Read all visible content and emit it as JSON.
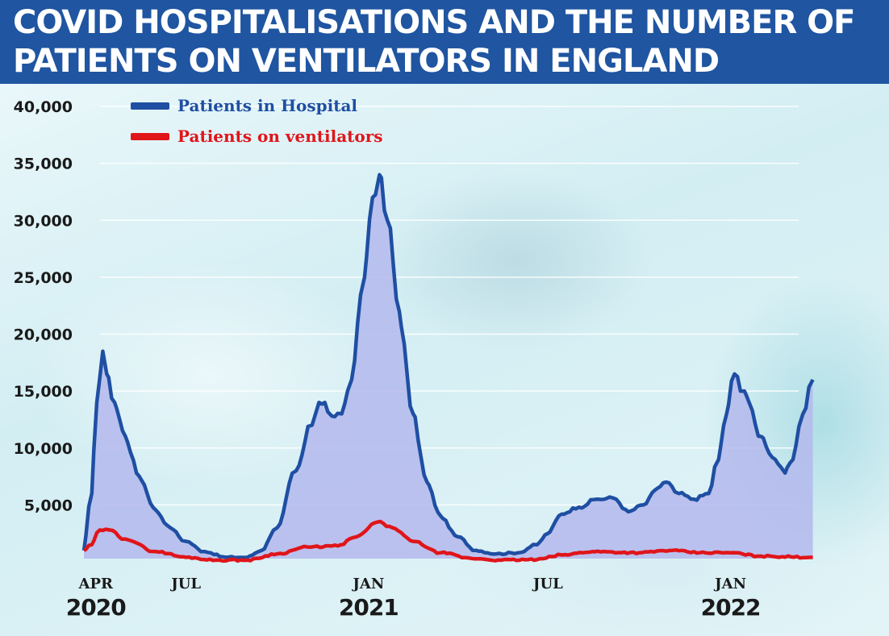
{
  "chart_data": {
    "type": "line",
    "title": "COVID HOSPITALISATIONS AND THE NUMBER OF PATIENTS ON VENTILATORS IN ENGLAND",
    "xlabel": "",
    "ylabel": "",
    "ylim": [
      0,
      40000
    ],
    "yticks": [
      {
        "value": 5000,
        "label": "5,000"
      },
      {
        "value": 10000,
        "label": "10,000"
      },
      {
        "value": 15000,
        "label": "15,000"
      },
      {
        "value": 20000,
        "label": "20,000"
      },
      {
        "value": 25000,
        "label": "25,000"
      },
      {
        "value": 30000,
        "label": "30,000"
      },
      {
        "value": 35000,
        "label": "35,000"
      },
      {
        "value": 40000,
        "label": "40,000"
      }
    ],
    "xlim": [
      "2020-03-20",
      "2022-03-31"
    ],
    "xticks": [
      {
        "date": "2020-04-01",
        "month": "APR",
        "year": "2020"
      },
      {
        "date": "2020-07-01",
        "month": "JUL",
        "year": ""
      },
      {
        "date": "2021-01-01",
        "month": "JAN",
        "year": "2021"
      },
      {
        "date": "2021-07-01",
        "month": "JUL",
        "year": ""
      },
      {
        "date": "2022-01-01",
        "month": "JAN",
        "year": "2022"
      }
    ],
    "grid": true,
    "legend_position": "top-left",
    "series": [
      {
        "name": "Patients in Hospital",
        "color": "#1f4fa3",
        "fill": "#b4b9ec",
        "points": [
          [
            "2020-03-20",
            1000
          ],
          [
            "2020-03-28",
            6000
          ],
          [
            "2020-04-02",
            14000
          ],
          [
            "2020-04-08",
            18500
          ],
          [
            "2020-04-12",
            16500
          ],
          [
            "2020-04-20",
            14000
          ],
          [
            "2020-05-01",
            11000
          ],
          [
            "2020-05-15",
            7500
          ],
          [
            "2020-06-01",
            4500
          ],
          [
            "2020-06-15",
            3000
          ],
          [
            "2020-07-01",
            1800
          ],
          [
            "2020-07-20",
            900
          ],
          [
            "2020-08-10",
            400
          ],
          [
            "2020-09-01",
            400
          ],
          [
            "2020-09-15",
            1000
          ],
          [
            "2020-10-01",
            3000
          ],
          [
            "2020-10-20",
            8000
          ],
          [
            "2020-11-05",
            12000
          ],
          [
            "2020-11-12",
            14000
          ],
          [
            "2020-11-18",
            14000
          ],
          [
            "2020-11-25",
            12800
          ],
          [
            "2020-12-05",
            13000
          ],
          [
            "2020-12-15",
            16000
          ],
          [
            "2020-12-28",
            25000
          ],
          [
            "2021-01-05",
            32000
          ],
          [
            "2021-01-12",
            34000
          ],
          [
            "2021-01-20",
            30000
          ],
          [
            "2021-02-01",
            22000
          ],
          [
            "2021-02-15",
            13000
          ],
          [
            "2021-03-01",
            7000
          ],
          [
            "2021-03-15",
            4000
          ],
          [
            "2021-04-01",
            2200
          ],
          [
            "2021-04-20",
            1000
          ],
          [
            "2021-05-10",
            700
          ],
          [
            "2021-06-01",
            800
          ],
          [
            "2021-06-20",
            1500
          ],
          [
            "2021-07-01",
            2500
          ],
          [
            "2021-07-15",
            4200
          ],
          [
            "2021-08-01",
            4800
          ],
          [
            "2021-08-20",
            5500
          ],
          [
            "2021-09-05",
            5600
          ],
          [
            "2021-09-20",
            4400
          ],
          [
            "2021-10-05",
            5000
          ],
          [
            "2021-10-20",
            6500
          ],
          [
            "2021-10-28",
            7000
          ],
          [
            "2021-11-10",
            6000
          ],
          [
            "2021-11-25",
            5500
          ],
          [
            "2021-12-10",
            6000
          ],
          [
            "2021-12-20",
            9000
          ],
          [
            "2021-12-28",
            13000
          ],
          [
            "2022-01-05",
            16500
          ],
          [
            "2022-01-15",
            15000
          ],
          [
            "2022-02-01",
            11000
          ],
          [
            "2022-02-15",
            9000
          ],
          [
            "2022-02-25",
            7800
          ],
          [
            "2022-03-05",
            9000
          ],
          [
            "2022-03-15",
            13000
          ],
          [
            "2022-03-25",
            16000
          ]
        ]
      },
      {
        "name": "Patients on ventilators",
        "color": "#e0151a",
        "points": [
          [
            "2020-03-20",
            1000
          ],
          [
            "2020-03-28",
            1500
          ],
          [
            "2020-04-05",
            2800
          ],
          [
            "2020-04-15",
            2800
          ],
          [
            "2020-05-01",
            2000
          ],
          [
            "2020-06-01",
            900
          ],
          [
            "2020-07-01",
            400
          ],
          [
            "2020-08-01",
            150
          ],
          [
            "2020-09-01",
            150
          ],
          [
            "2020-10-01",
            700
          ],
          [
            "2020-11-01",
            1300
          ],
          [
            "2020-12-01",
            1400
          ],
          [
            "2020-12-20",
            2200
          ],
          [
            "2021-01-10",
            3500
          ],
          [
            "2021-01-25",
            3000
          ],
          [
            "2021-02-15",
            1800
          ],
          [
            "2021-03-15",
            800
          ],
          [
            "2021-04-15",
            300
          ],
          [
            "2021-05-15",
            150
          ],
          [
            "2021-06-20",
            200
          ],
          [
            "2021-07-15",
            600
          ],
          [
            "2021-08-15",
            900
          ],
          [
            "2021-10-01",
            800
          ],
          [
            "2021-11-01",
            1000
          ],
          [
            "2021-12-01",
            800
          ],
          [
            "2022-01-01",
            800
          ],
          [
            "2022-02-01",
            500
          ],
          [
            "2022-03-25",
            400
          ]
        ]
      }
    ]
  }
}
